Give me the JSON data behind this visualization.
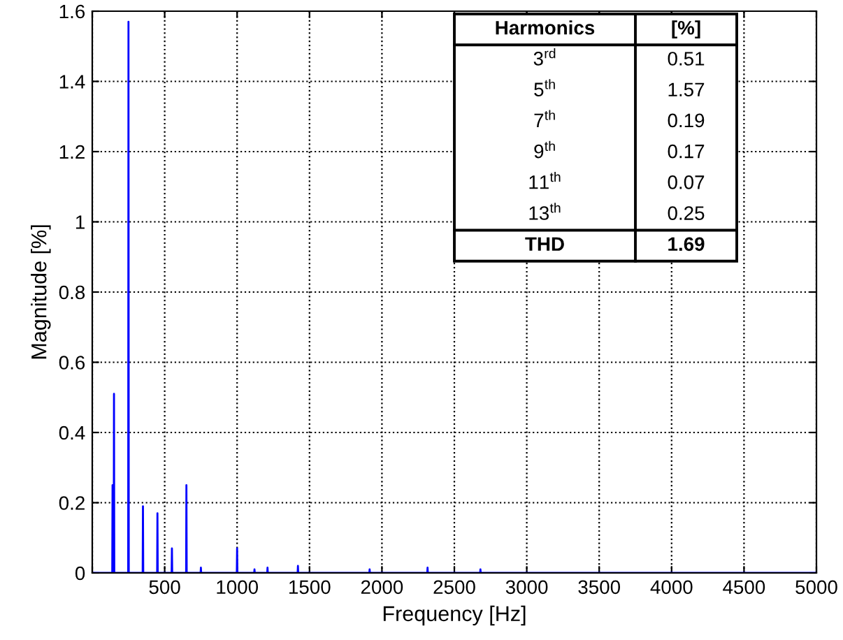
{
  "chart_data": {
    "type": "line",
    "xlabel": "Frequency [Hz]",
    "ylabel": "Magnitude [%]",
    "xlim": [
      0,
      5000
    ],
    "xticks": [
      {
        "value": 0,
        "label": null
      },
      500,
      1000,
      1500,
      2000,
      2500,
      3000,
      3500,
      4000,
      4500,
      5000
    ],
    "ylim": [
      0,
      1.6
    ],
    "yticks": [
      0,
      0.2,
      0.4,
      0.6,
      0.8,
      1,
      1.2,
      1.4,
      1.6
    ],
    "grid": true,
    "legend": false,
    "marker": "none",
    "line_style": "solid",
    "series": [
      {
        "color": "#0000ff",
        "x": [
          0,
          138,
          140,
          142,
          148,
          150,
          152,
          248,
          250,
          252,
          348,
          350,
          352,
          448,
          450,
          452,
          548,
          550,
          552,
          648,
          650,
          652,
          748,
          750,
          752,
          998,
          1000,
          1002,
          1118,
          1120,
          1122,
          1208,
          1210,
          1212,
          1418,
          1420,
          1422,
          1913,
          1915,
          1917,
          2313,
          2315,
          2317,
          2678,
          2680,
          2682,
          5000
        ],
        "values": [
          0,
          0,
          0.25,
          0,
          0,
          0.51,
          0,
          0,
          1.57,
          0,
          0,
          0.19,
          0,
          0,
          0.17,
          0,
          0,
          0.07,
          0,
          0,
          0.25,
          0,
          0,
          0.015,
          0,
          0,
          0.07,
          0,
          0,
          0.01,
          0,
          0,
          0.015,
          0,
          0,
          0.02,
          0,
          0,
          0.01,
          0,
          0,
          0.015,
          0,
          0,
          0.01,
          0,
          0
        ]
      }
    ],
    "annotations": [
      "Harmonics",
      "[%]",
      "3$^{rd}$",
      "0.51",
      "5$^{th}$",
      "1.57",
      "7$^{th}$",
      "0.19",
      "9$^{th}$",
      "0.17",
      "11$^{th}$",
      "0.07",
      "13$^{th}$",
      "0.25",
      "THD",
      "1.69"
    ]
  }
}
